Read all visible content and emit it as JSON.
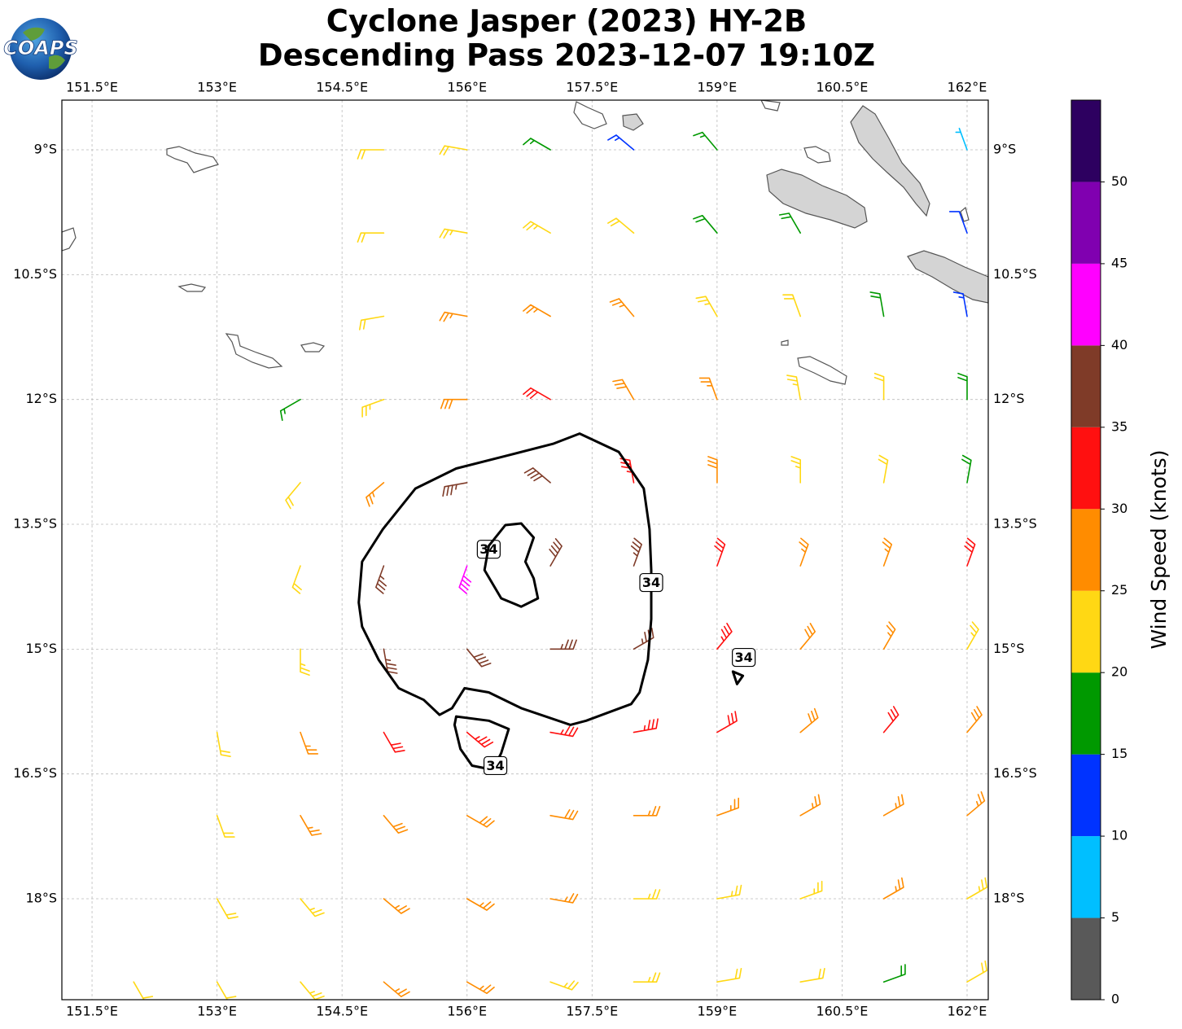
{
  "chart_data": {
    "type": "barbs",
    "title": "Cyclone Jasper (2023) HY-2B",
    "subtitle": "Descending Pass 2023-12-07 19:10Z",
    "logo": "COAPS",
    "xlim": [
      151.138,
      162.254
    ],
    "ylim": [
      -19.213,
      -8.403
    ],
    "xticks": [
      {
        "value": 151.5,
        "label": "151.5°E"
      },
      {
        "value": 153,
        "label": "153°E"
      },
      {
        "value": 154.5,
        "label": "154.5°E"
      },
      {
        "value": 156,
        "label": "156°E"
      },
      {
        "value": 157.5,
        "label": "157.5°E"
      },
      {
        "value": 159,
        "label": "159°E"
      },
      {
        "value": 160.5,
        "label": "160.5°E"
      },
      {
        "value": 162,
        "label": "162°E"
      }
    ],
    "yticks": [
      {
        "value": -9,
        "label": "9°S"
      },
      {
        "value": -10.5,
        "label": "10.5°S"
      },
      {
        "value": -12,
        "label": "12°S"
      },
      {
        "value": -13.5,
        "label": "13.5°S"
      },
      {
        "value": -15,
        "label": "15°S"
      },
      {
        "value": -16.5,
        "label": "16.5°S"
      },
      {
        "value": -18,
        "label": "18°S"
      }
    ],
    "grid": true,
    "colorbar": {
      "label": "Wind Speed (knots)",
      "bounds": [
        0,
        5,
        10,
        15,
        20,
        25,
        30,
        35,
        40,
        45,
        50,
        55
      ],
      "ticks": [
        0,
        5,
        10,
        15,
        20,
        25,
        30,
        35,
        40,
        45,
        50
      ],
      "colors": [
        "#595959",
        "#00bfff",
        "#0033ff",
        "#009900",
        "#ffd814",
        "#ff8c00",
        "#ff1010",
        "#7f3b28",
        "#ff00ff",
        "#8000b0",
        "#2d0060"
      ]
    },
    "barbs": [
      [
        155,
        -9,
        22,
        270
      ],
      [
        156,
        -9,
        22,
        280
      ],
      [
        157,
        -9,
        17,
        300
      ],
      [
        158,
        -9,
        13,
        310
      ],
      [
        159,
        -9,
        17,
        320
      ],
      [
        162,
        -9,
        7,
        340
      ],
      [
        155,
        -10,
        21,
        270
      ],
      [
        156,
        -10,
        23,
        280
      ],
      [
        157,
        -10,
        24,
        300
      ],
      [
        158,
        -10,
        22,
        310
      ],
      [
        159,
        -10,
        18,
        320
      ],
      [
        160,
        -10,
        19,
        330
      ],
      [
        162,
        -10,
        12,
        340
      ],
      [
        155,
        -11,
        22,
        260
      ],
      [
        156,
        -11,
        26,
        280
      ],
      [
        157,
        -11,
        27,
        300
      ],
      [
        158,
        -11,
        26,
        320
      ],
      [
        159,
        -11,
        24,
        330
      ],
      [
        160,
        -11,
        22,
        340
      ],
      [
        161,
        -11,
        18,
        350
      ],
      [
        162,
        -11,
        13,
        350
      ],
      [
        154,
        -12,
        17,
        240
      ],
      [
        155,
        -12,
        23,
        250
      ],
      [
        156,
        -12,
        28,
        270
      ],
      [
        157,
        -12,
        31,
        300
      ],
      [
        158,
        -12,
        28,
        330
      ],
      [
        159,
        -12,
        26,
        340
      ],
      [
        160,
        -12,
        23,
        350
      ],
      [
        161,
        -12,
        20,
        0
      ],
      [
        162,
        -12,
        18,
        0
      ],
      [
        154,
        -13,
        21,
        220
      ],
      [
        155,
        -13,
        26,
        230
      ],
      [
        156,
        -13,
        36,
        260
      ],
      [
        157,
        -13,
        38,
        310
      ],
      [
        158,
        -13,
        33,
        350
      ],
      [
        159,
        -13,
        28,
        0
      ],
      [
        160,
        -13,
        24,
        0
      ],
      [
        161,
        -13,
        22,
        10
      ],
      [
        162,
        -13,
        19,
        10
      ],
      [
        154,
        -14,
        22,
        200
      ],
      [
        155,
        -14,
        36,
        200
      ],
      [
        156,
        -14,
        41,
        200
      ],
      [
        157,
        -14,
        38,
        30
      ],
      [
        158,
        -14,
        35,
        20
      ],
      [
        159,
        -14,
        31,
        20
      ],
      [
        160,
        -14,
        27,
        20
      ],
      [
        161,
        -14,
        27,
        20
      ],
      [
        162,
        -14,
        30,
        20
      ],
      [
        154,
        -15,
        23,
        180
      ],
      [
        155,
        -15,
        36,
        170
      ],
      [
        156,
        -15,
        38,
        140
      ],
      [
        157,
        -15,
        37,
        90
      ],
      [
        158,
        -15,
        36,
        60
      ],
      [
        159,
        -15,
        33,
        40
      ],
      [
        160,
        -15,
        28,
        40
      ],
      [
        161,
        -15,
        27,
        30
      ],
      [
        162,
        -15,
        24,
        30
      ],
      [
        153,
        -16,
        21,
        170
      ],
      [
        154,
        -16,
        26,
        160
      ],
      [
        155,
        -16,
        31,
        150
      ],
      [
        156,
        -16,
        33,
        130
      ],
      [
        157,
        -16,
        33,
        100
      ],
      [
        158,
        -16,
        33,
        80
      ],
      [
        159,
        -16,
        32,
        60
      ],
      [
        160,
        -16,
        29,
        50
      ],
      [
        161,
        -16,
        31,
        40
      ],
      [
        162,
        -16,
        28,
        40
      ],
      [
        153,
        -17,
        22,
        160
      ],
      [
        154,
        -17,
        26,
        150
      ],
      [
        155,
        -17,
        28,
        140
      ],
      [
        156,
        -17,
        29,
        120
      ],
      [
        157,
        -17,
        28,
        100
      ],
      [
        158,
        -17,
        27,
        90
      ],
      [
        159,
        -17,
        27,
        70
      ],
      [
        160,
        -17,
        27,
        60
      ],
      [
        161,
        -17,
        26,
        60
      ],
      [
        162,
        -17,
        25,
        50
      ],
      [
        153,
        -18,
        22,
        150
      ],
      [
        154,
        -18,
        24,
        140
      ],
      [
        155,
        -18,
        26,
        130
      ],
      [
        156,
        -18,
        27,
        120
      ],
      [
        157,
        -18,
        26,
        100
      ],
      [
        158,
        -18,
        24,
        90
      ],
      [
        159,
        -18,
        23,
        80
      ],
      [
        160,
        -18,
        24,
        70
      ],
      [
        161,
        -18,
        25,
        60
      ],
      [
        162,
        -18,
        23,
        60
      ],
      [
        152,
        -19,
        21,
        150
      ],
      [
        153,
        -19,
        22,
        150
      ],
      [
        154,
        -19,
        23,
        140
      ],
      [
        155,
        -19,
        25,
        130
      ],
      [
        156,
        -19,
        26,
        120
      ],
      [
        157,
        -19,
        24,
        110
      ],
      [
        158,
        -19,
        23,
        90
      ],
      [
        159,
        -19,
        22,
        80
      ],
      [
        160,
        -19,
        22,
        80
      ],
      [
        161,
        -19,
        18,
        70
      ],
      [
        162,
        -19,
        21,
        60
      ]
    ],
    "contours": [
      {
        "level": 34,
        "points": [
          [
            157.35,
            -12.41
          ],
          [
            157.82,
            -12.63
          ],
          [
            158.12,
            -13.07
          ],
          [
            158.19,
            -13.56
          ],
          [
            158.21,
            -14.05
          ],
          [
            158.21,
            -14.64
          ],
          [
            158.17,
            -15.13
          ],
          [
            158.07,
            -15.52
          ],
          [
            157.97,
            -15.66
          ],
          [
            157.43,
            -15.86
          ],
          [
            157.24,
            -15.91
          ],
          [
            156.65,
            -15.71
          ],
          [
            156.26,
            -15.52
          ],
          [
            155.97,
            -15.47
          ],
          [
            155.82,
            -15.71
          ],
          [
            155.67,
            -15.79
          ],
          [
            155.48,
            -15.61
          ],
          [
            155.18,
            -15.47
          ],
          [
            154.94,
            -15.13
          ],
          [
            154.74,
            -14.73
          ],
          [
            154.7,
            -14.44
          ],
          [
            154.74,
            -13.95
          ],
          [
            154.99,
            -13.56
          ],
          [
            155.38,
            -13.07
          ],
          [
            155.87,
            -12.83
          ],
          [
            156.46,
            -12.68
          ],
          [
            157.04,
            -12.53
          ]
        ],
        "label_at": [
          [
            156.26,
            -13.8
          ],
          [
            158.21,
            -14.2
          ]
        ]
      },
      {
        "level": 34,
        "points": [
          [
            156.21,
            -14.05
          ],
          [
            156.26,
            -13.76
          ],
          [
            156.46,
            -13.51
          ],
          [
            156.65,
            -13.49
          ],
          [
            156.8,
            -13.66
          ],
          [
            156.7,
            -13.95
          ],
          [
            156.8,
            -14.15
          ],
          [
            156.85,
            -14.39
          ],
          [
            156.65,
            -14.49
          ],
          [
            156.41,
            -14.39
          ]
        ]
      },
      {
        "level": 34,
        "points": [
          [
            155.87,
            -15.81
          ],
          [
            156.26,
            -15.86
          ],
          [
            156.5,
            -15.96
          ],
          [
            156.41,
            -16.25
          ],
          [
            156.31,
            -16.45
          ],
          [
            156.06,
            -16.4
          ],
          [
            155.92,
            -16.2
          ],
          [
            155.85,
            -15.91
          ]
        ],
        "label_at": [
          [
            156.34,
            -16.4
          ]
        ]
      },
      {
        "level": 34,
        "points": [
          [
            159.19,
            -15.27
          ],
          [
            159.24,
            -15.42
          ],
          [
            159.31,
            -15.32
          ]
        ],
        "label_at": [
          [
            159.32,
            -15.1
          ]
        ]
      }
    ]
  }
}
